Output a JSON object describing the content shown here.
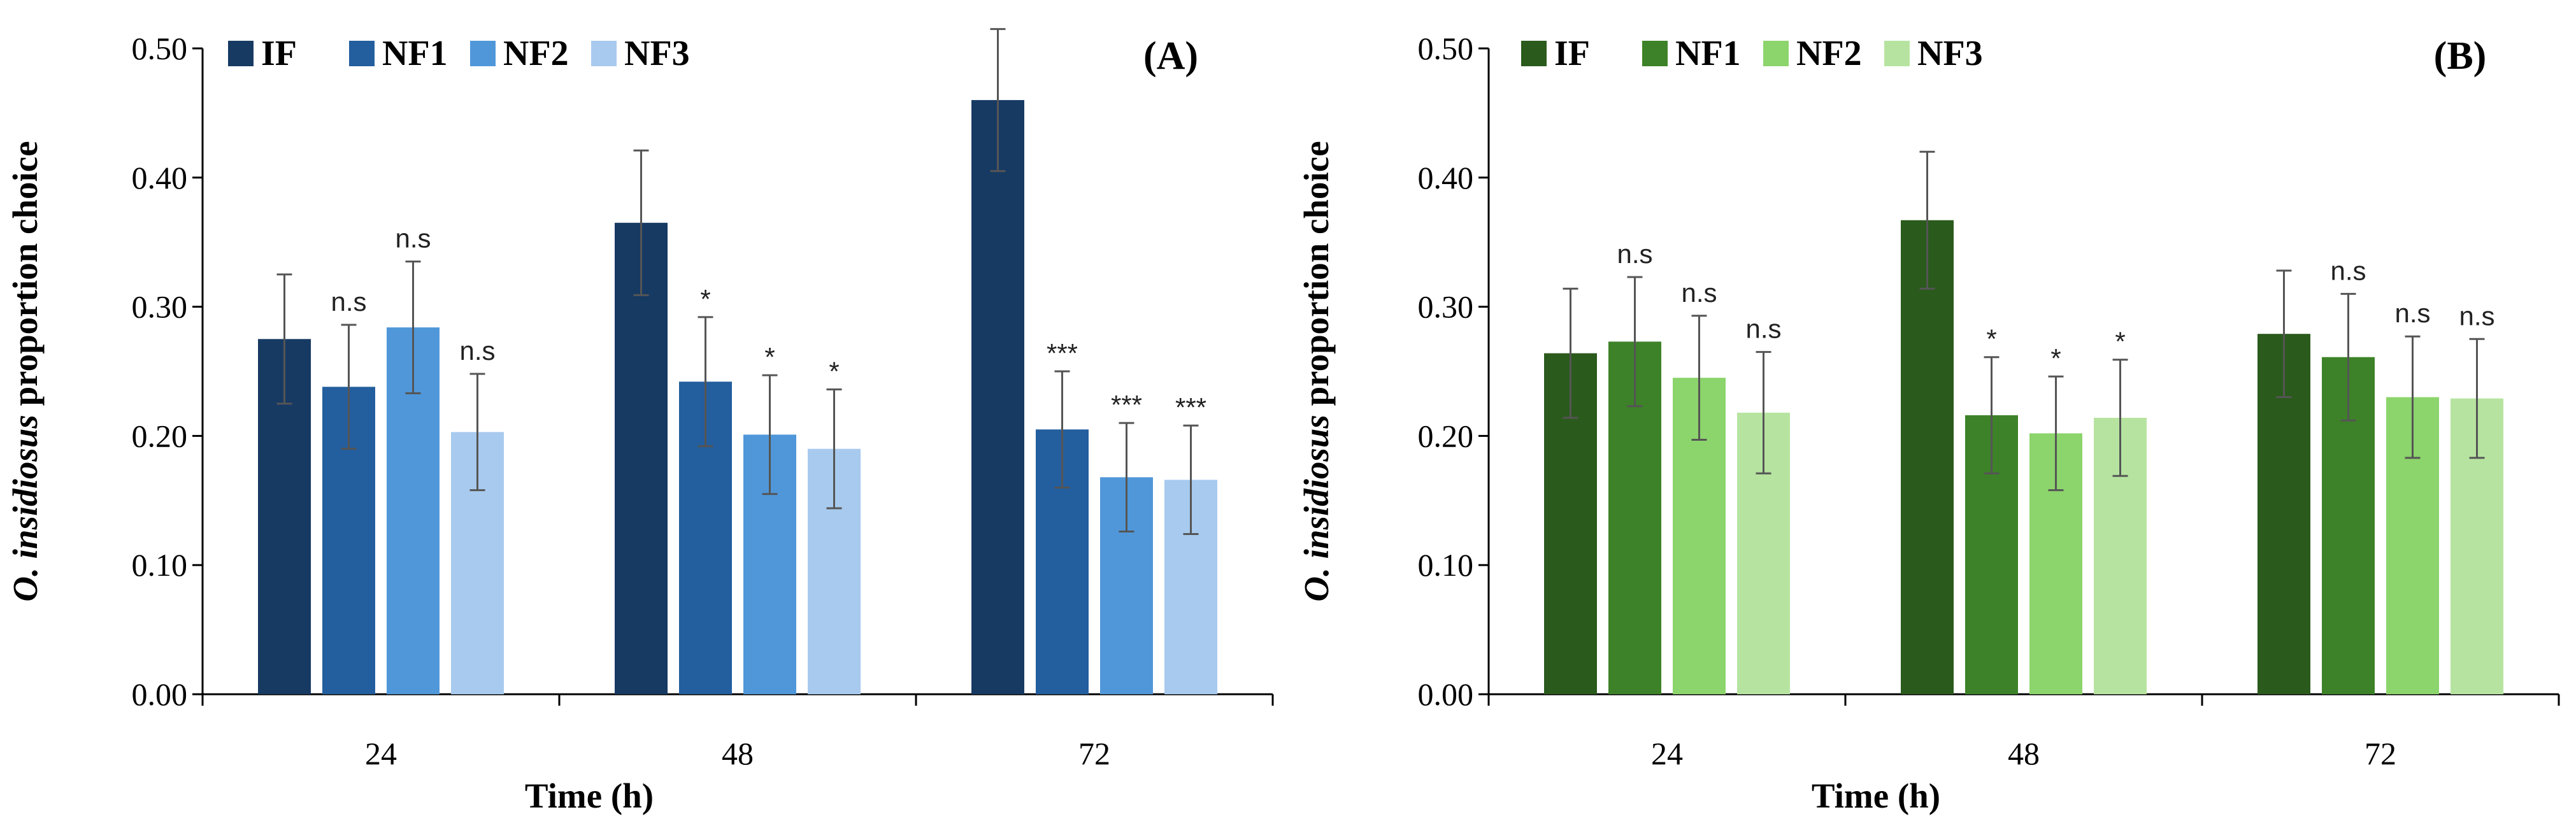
{
  "chart_data": [
    {
      "type": "bar",
      "panel_label": "(A)",
      "title": "",
      "xlabel": "Time (h)",
      "ylabel_italic": "O. insidiosus",
      "ylabel_rest": " proportion choice",
      "ylim": [
        0,
        0.5
      ],
      "yticks": [
        "0.00",
        "0.10",
        "0.20",
        "0.30",
        "0.40",
        "0.50"
      ],
      "yticks_values": [
        0,
        0.1,
        0.2,
        0.3,
        0.4,
        0.5
      ],
      "categories": [
        "24",
        "48",
        "72"
      ],
      "legend_position": "top-left",
      "series": [
        {
          "name": "IF",
          "color": "#173a63",
          "values": [
            0.275,
            0.365,
            0.46
          ],
          "errors": [
            0.05,
            0.056,
            0.055
          ],
          "sig": [
            "",
            "",
            ""
          ]
        },
        {
          "name": "NF1",
          "color": "#235e9e",
          "values": [
            0.238,
            0.242,
            0.205
          ],
          "errors": [
            0.048,
            0.05,
            0.045
          ],
          "sig": [
            "n.s",
            "*",
            "***"
          ]
        },
        {
          "name": "NF2",
          "color": "#5097d9",
          "values": [
            0.284,
            0.201,
            0.168
          ],
          "errors": [
            0.051,
            0.046,
            0.042
          ],
          "sig": [
            "n.s",
            "*",
            "***"
          ]
        },
        {
          "name": "NF3",
          "color": "#a8caee",
          "values": [
            0.203,
            0.19,
            0.166
          ],
          "errors": [
            0.045,
            0.046,
            0.042
          ],
          "sig": [
            "n.s",
            "*",
            "***"
          ]
        }
      ]
    },
    {
      "type": "bar",
      "panel_label": "(B)",
      "title": "",
      "xlabel": "Time (h)",
      "ylabel_italic": "O. insidiosus",
      "ylabel_rest": " proportion choice",
      "ylim": [
        0,
        0.5
      ],
      "yticks": [
        "0.00",
        "0.10",
        "0.20",
        "0.30",
        "0.40",
        "0.50"
      ],
      "yticks_values": [
        0,
        0.1,
        0.2,
        0.3,
        0.4,
        0.5
      ],
      "categories": [
        "24",
        "48",
        "72"
      ],
      "legend_position": "top-left",
      "series": [
        {
          "name": "IF",
          "color": "#2a5a1c",
          "values": [
            0.264,
            0.367,
            0.279
          ],
          "errors": [
            0.05,
            0.053,
            0.049
          ],
          "sig": [
            "",
            "",
            ""
          ]
        },
        {
          "name": "NF1",
          "color": "#3d8228",
          "values": [
            0.273,
            0.216,
            0.261
          ],
          "errors": [
            0.05,
            0.045,
            0.049
          ],
          "sig": [
            "n.s",
            "*",
            "n.s"
          ]
        },
        {
          "name": "NF2",
          "color": "#8cd46c",
          "values": [
            0.245,
            0.202,
            0.23
          ],
          "errors": [
            0.048,
            0.044,
            0.047
          ],
          "sig": [
            "n.s",
            "*",
            "n.s"
          ]
        },
        {
          "name": "NF3",
          "color": "#b6e4a0",
          "values": [
            0.218,
            0.214,
            0.229
          ],
          "errors": [
            0.047,
            0.045,
            0.046
          ],
          "sig": [
            "n.s",
            "*",
            "n.s"
          ]
        }
      ]
    }
  ]
}
